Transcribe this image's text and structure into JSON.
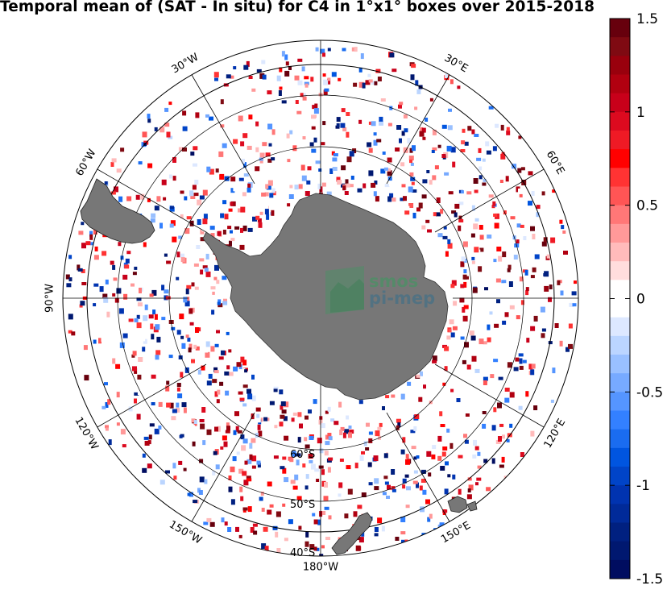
{
  "title": "Temporal mean of (SAT - In situ) for C4 in 1°x1° boxes over 2015-2018",
  "map": {
    "projection": "south polar stereographic",
    "meridian_labels": [
      {
        "text": "30°W",
        "lon": -30
      },
      {
        "text": "30°E",
        "lon": 30
      },
      {
        "text": "60°W",
        "lon": -60
      },
      {
        "text": "60°E",
        "lon": 60
      },
      {
        "text": "90°W",
        "lon": -90
      },
      {
        "text": "120°W",
        "lon": -120
      },
      {
        "text": "120°E",
        "lon": 120
      },
      {
        "text": "150°W",
        "lon": -150
      },
      {
        "text": "150°E",
        "lon": 150
      },
      {
        "text": "180°W",
        "lon": 180
      }
    ],
    "parallel_labels": [
      "60°S",
      "50°S",
      "40°S"
    ],
    "logo_line1": "smos",
    "logo_line2": "pi-mep",
    "land_color": "#777777"
  },
  "colorbar": {
    "min": -1.5,
    "max": 1.5,
    "ticks": [
      "1.5",
      "1",
      "0.5",
      "0",
      "-0.5",
      "-1",
      "-1.5"
    ],
    "colors_top_to_bottom": [
      "#67000d",
      "#7f0a12",
      "#99000d",
      "#b10010",
      "#c8001a",
      "#dc0a1f",
      "#ef1a25",
      "#ff0000",
      "#ff3333",
      "#ff5555",
      "#ff7777",
      "#ff9999",
      "#ffbbbb",
      "#ffdddd",
      "#ffffff",
      "#ffffff",
      "#dde8ff",
      "#bbd5ff",
      "#99c0ff",
      "#77aaff",
      "#5595ff",
      "#3380ff",
      "#1a6cf0",
      "#0055e0",
      "#0044c8",
      "#0033b0",
      "#002a99",
      "#002080",
      "#001870",
      "#000d60"
    ]
  }
}
